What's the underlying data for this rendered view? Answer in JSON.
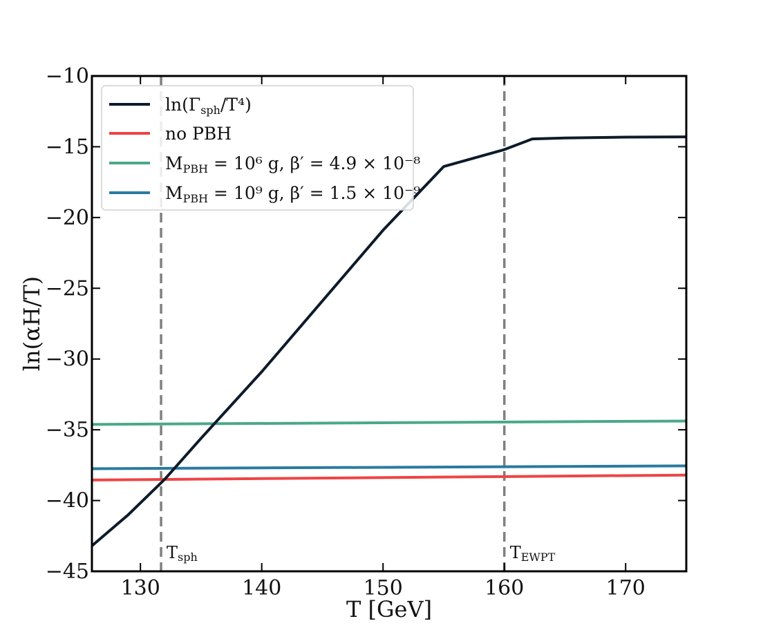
{
  "chart_data": {
    "type": "line",
    "xlabel": "T [GeV]",
    "ylabel": "ln(αH/T)",
    "xlim": [
      126,
      175
    ],
    "ylim": [
      -45,
      -10
    ],
    "xticks": [
      130,
      140,
      150,
      160,
      170
    ],
    "yticks": [
      -45,
      -40,
      -35,
      -30,
      -25,
      -20,
      -15,
      -10
    ],
    "xtick_labels": [
      "130",
      "140",
      "150",
      "160",
      "170"
    ],
    "ytick_labels": [
      "−45",
      "−40",
      "−35",
      "−30",
      "−25",
      "−20",
      "−15",
      "−10"
    ],
    "grid": false,
    "legend_position": "top-left",
    "series": [
      {
        "name": "ln(Γsph/T⁴)",
        "color": "#0d1b2a",
        "x": [
          126,
          129,
          132,
          135,
          140,
          145,
          150,
          155,
          160,
          162.3,
          165,
          170,
          175
        ],
        "y": [
          -43.2,
          -41.0,
          -38.5,
          -35.6,
          -30.9,
          -25.9,
          -20.9,
          -16.4,
          -15.2,
          -14.45,
          -14.38,
          -14.32,
          -14.3
        ]
      },
      {
        "name": "no PBH",
        "color": "#ef4444",
        "x": [
          126,
          175
        ],
        "y": [
          -38.55,
          -38.2
        ]
      },
      {
        "name": "MPBH = 10⁶ g, β′ = 4.9 × 10⁻⁸",
        "color": "#4aa88a",
        "x": [
          126,
          175
        ],
        "y": [
          -34.62,
          -34.38
        ]
      },
      {
        "name": "MPBH = 10⁹ g, β′ = 1.5 × 10⁻⁹",
        "color": "#2a7aa0",
        "x": [
          126,
          175
        ],
        "y": [
          -37.75,
          -37.55
        ]
      }
    ],
    "vlines": [
      {
        "x": 131.7,
        "label": "Tsph",
        "color": "#808080"
      },
      {
        "x": 160.0,
        "label": "TEWPT",
        "color": "#808080"
      }
    ]
  }
}
